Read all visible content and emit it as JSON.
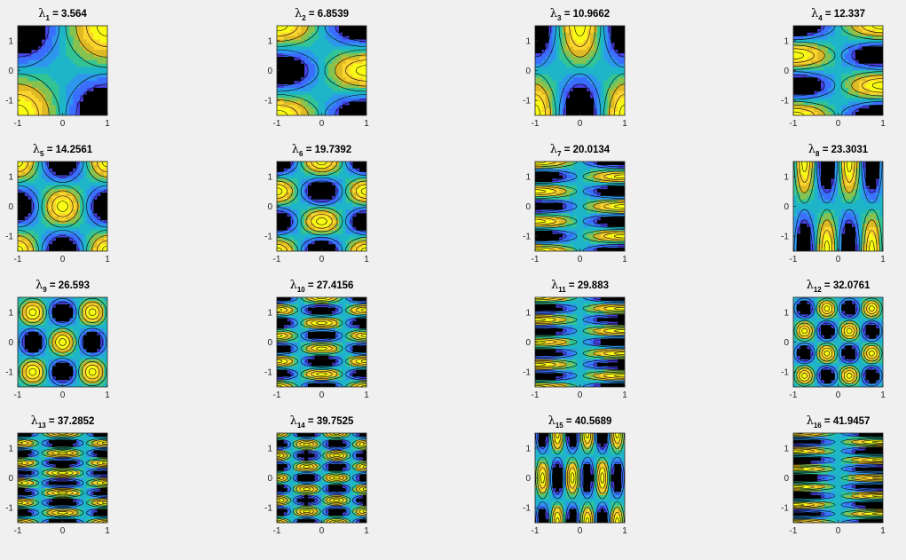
{
  "figure": {
    "background": "#f0f0f0",
    "colormap": [
      "#3e26a8",
      "#4742e4",
      "#3a6ffe",
      "#2e97ec",
      "#1eb5c8",
      "#33c495",
      "#87c24e",
      "#ddb925",
      "#fcd42e",
      "#f9fb15"
    ]
  },
  "chart_data": [
    {
      "type": "contour",
      "title": "λ = 3.564",
      "symbol": "λ",
      "subscript": "1",
      "value": "3.564",
      "xlim": [
        -1,
        1
      ],
      "ylim": [
        -1.5,
        1.5
      ],
      "xticks": [
        "-1",
        "0",
        "1"
      ],
      "yticks": [
        "1",
        "0",
        "-1"
      ],
      "mode": {
        "nx": 1,
        "ny": 1,
        "px": 0,
        "py": 0
      }
    },
    {
      "type": "contour",
      "title": "λ = 6.8539",
      "symbol": "λ",
      "subscript": "2",
      "value": "6.8539",
      "xlim": [
        -1,
        1
      ],
      "ylim": [
        -1.5,
        1.5
      ],
      "xticks": [
        "-1",
        "0",
        "1"
      ],
      "yticks": [
        "1",
        "0",
        "-1"
      ],
      "mode": {
        "nx": 1,
        "ny": 2,
        "px": 0,
        "py": 0
      }
    },
    {
      "type": "contour",
      "title": "λ = 10.9662",
      "symbol": "λ",
      "subscript": "3",
      "value": "10.9662",
      "xlim": [
        -1,
        1
      ],
      "ylim": [
        -1.5,
        1.5
      ],
      "xticks": [
        "-1",
        "0",
        "1"
      ],
      "yticks": [
        "1",
        "0",
        "-1"
      ],
      "mode": {
        "nx": 2,
        "ny": 1,
        "px": 0,
        "py": 0
      }
    },
    {
      "type": "contour",
      "title": "λ = 12.337",
      "symbol": "λ",
      "subscript": "4",
      "value": "12.337",
      "xlim": [
        -1,
        1
      ],
      "ylim": [
        -1.5,
        1.5
      ],
      "xticks": [
        "-1",
        "0",
        "1"
      ],
      "yticks": [
        "1",
        "0",
        "-1"
      ],
      "mode": {
        "nx": 1,
        "ny": 3,
        "px": 0,
        "py": 0
      }
    },
    {
      "type": "contour",
      "title": "λ = 14.2561",
      "symbol": "λ",
      "subscript": "5",
      "value": "14.2561",
      "xlim": [
        -1,
        1
      ],
      "ylim": [
        -1.5,
        1.5
      ],
      "xticks": [
        "-1",
        "0",
        "1"
      ],
      "yticks": [
        "1",
        "0",
        "-1"
      ],
      "mode": {
        "nx": 2,
        "ny": 2,
        "px": 0,
        "py": 0
      }
    },
    {
      "type": "contour",
      "title": "λ = 19.7392",
      "symbol": "λ",
      "subscript": "6",
      "value": "19.7392",
      "xlim": [
        -1,
        1
      ],
      "ylim": [
        -1.5,
        1.5
      ],
      "xticks": [
        "-1",
        "0",
        "1"
      ],
      "yticks": [
        "1",
        "0",
        "-1"
      ],
      "mode": {
        "nx": 2,
        "ny": 3,
        "px": 0,
        "py": 0
      }
    },
    {
      "type": "contour",
      "title": "λ = 20.0134",
      "symbol": "λ",
      "subscript": "7",
      "value": "20.0134",
      "xlim": [
        -1,
        1
      ],
      "ylim": [
        -1.5,
        1.5
      ],
      "xticks": [
        "-1",
        "0",
        "1"
      ],
      "yticks": [
        "1",
        "0",
        "-1"
      ],
      "mode": {
        "nx": 1,
        "ny": 6,
        "px": 0,
        "py": 0
      }
    },
    {
      "type": "contour",
      "title": "λ = 23.3031",
      "symbol": "λ",
      "subscript": "8",
      "value": "23.3031",
      "xlim": [
        -1,
        1
      ],
      "ylim": [
        -1.5,
        1.5
      ],
      "xticks": [
        "-1",
        "0",
        "1"
      ],
      "yticks": [
        "1",
        "0",
        "-1"
      ],
      "mode": {
        "nx": 4,
        "ny": 1,
        "px": 0.5,
        "py": 0
      }
    },
    {
      "type": "contour",
      "title": "λ = 26.593",
      "symbol": "λ",
      "subscript": "9",
      "value": "26.593",
      "xlim": [
        -1,
        1
      ],
      "ylim": [
        -1.5,
        1.5
      ],
      "xticks": [
        "-1",
        "0",
        "1"
      ],
      "yticks": [
        "1",
        "0",
        "-1"
      ],
      "mode": {
        "nx": 3,
        "ny": 3,
        "px": 0.5,
        "py": 0.5
      }
    },
    {
      "type": "contour",
      "title": "λ = 27.4156",
      "symbol": "λ",
      "subscript": "10",
      "value": "27.4156",
      "xlim": [
        -1,
        1
      ],
      "ylim": [
        -1.5,
        1.5
      ],
      "xticks": [
        "-1",
        "0",
        "1"
      ],
      "yticks": [
        "1",
        "0",
        "-1"
      ],
      "mode": {
        "nx": 2,
        "ny": 7,
        "px": 0,
        "py": 0
      }
    },
    {
      "type": "contour",
      "title": "λ = 29.883",
      "symbol": "λ",
      "subscript": "11",
      "value": "29.883",
      "xlim": [
        -1,
        1
      ],
      "ylim": [
        -1.5,
        1.5
      ],
      "xticks": [
        "-1",
        "0",
        "1"
      ],
      "yticks": [
        "1",
        "0",
        "-1"
      ],
      "mode": {
        "nx": 1,
        "ny": 8,
        "px": 0,
        "py": 0
      }
    },
    {
      "type": "contour",
      "title": "λ = 32.0761",
      "symbol": "λ",
      "subscript": "12",
      "value": "32.0761",
      "xlim": [
        -1,
        1
      ],
      "ylim": [
        -1.5,
        1.5
      ],
      "xticks": [
        "-1",
        "0",
        "1"
      ],
      "yticks": [
        "1",
        "0",
        "-1"
      ],
      "mode": {
        "nx": 4,
        "ny": 4,
        "px": 0.5,
        "py": 0.5
      }
    },
    {
      "type": "contour",
      "title": "λ = 37.2852",
      "symbol": "λ",
      "subscript": "13",
      "value": "37.2852",
      "xlim": [
        -1,
        1
      ],
      "ylim": [
        -1.5,
        1.5
      ],
      "xticks": [
        "-1",
        "0",
        "1"
      ],
      "yticks": [
        "1",
        "0",
        "-1"
      ],
      "mode": {
        "nx": 2,
        "ny": 9,
        "px": 0,
        "py": 0
      }
    },
    {
      "type": "contour",
      "title": "λ = 39.7525",
      "symbol": "λ",
      "subscript": "14",
      "value": "39.7525",
      "xlim": [
        -1,
        1
      ],
      "ylim": [
        -1.5,
        1.5
      ],
      "xticks": [
        "-1",
        "0",
        "1"
      ],
      "yticks": [
        "1",
        "0",
        "-1"
      ],
      "mode": {
        "nx": 3,
        "ny": 8,
        "px": 0,
        "py": 0
      }
    },
    {
      "type": "contour",
      "title": "λ = 40.5689",
      "symbol": "λ",
      "subscript": "15",
      "value": "40.5689",
      "xlim": [
        -1,
        1
      ],
      "ylim": [
        -1.5,
        1.5
      ],
      "xticks": [
        "-1",
        "0",
        "1"
      ],
      "yticks": [
        "1",
        "0",
        "-1"
      ],
      "mode": {
        "nx": 6,
        "ny": 2,
        "px": 0.5,
        "py": 0
      }
    },
    {
      "type": "contour",
      "title": "λ = 41.9457",
      "symbol": "λ",
      "subscript": "16",
      "value": "41.9457",
      "xlim": [
        -1,
        1
      ],
      "ylim": [
        -1.5,
        1.5
      ],
      "xticks": [
        "-1",
        "0",
        "1"
      ],
      "yticks": [
        "1",
        "0",
        "-1"
      ],
      "mode": {
        "nx": 1,
        "ny": 10,
        "px": 0,
        "py": 0
      }
    }
  ]
}
